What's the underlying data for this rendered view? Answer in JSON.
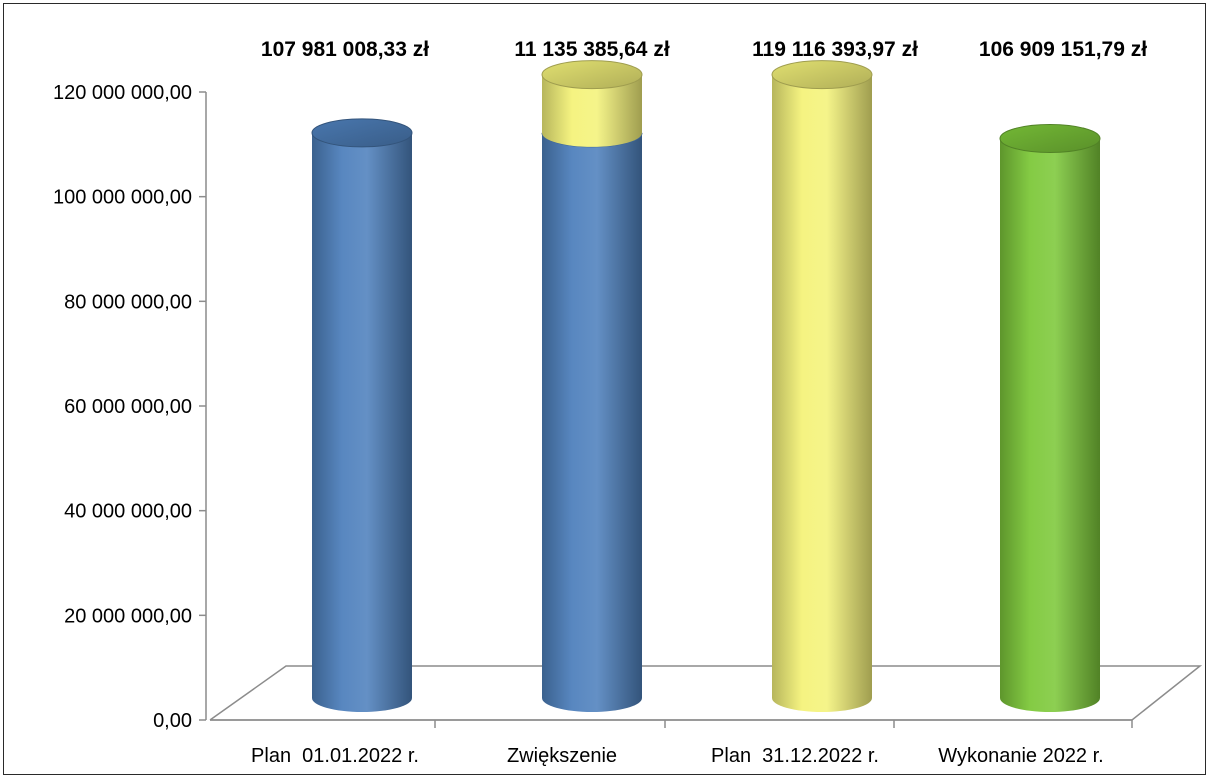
{
  "chart_data": {
    "type": "bar",
    "style": "3d-cylinder",
    "categories": [
      "Plan  01.01.2022 r.",
      "Zwiększenie",
      "Plan  31.12.2022 r.",
      "Wykonanie 2022 r."
    ],
    "series": [
      {
        "color": "#4f81bd",
        "values": [
          107981008.33,
          107981008.33,
          0,
          0
        ]
      },
      {
        "color": "#f4f27a",
        "values": [
          0,
          11135385.64,
          119116393.97,
          0
        ]
      },
      {
        "color": "#7dc83a",
        "values": [
          0,
          0,
          0,
          106909151.79
        ]
      }
    ],
    "data_labels": [
      "107 981 008,33 zł",
      "11 135 385,64 zł",
      "119 116 393,97 zł",
      "106 909 151,79 zł"
    ],
    "y_ticks": [
      {
        "value": 0,
        "label": "0,00"
      },
      {
        "value": 20000000,
        "label": "20 000 000,00"
      },
      {
        "value": 40000000,
        "label": "40 000 000,00"
      },
      {
        "value": 60000000,
        "label": "60 000 000,00"
      },
      {
        "value": 80000000,
        "label": "80 000 000,00"
      },
      {
        "value": 100000000,
        "label": "100 000 000,00"
      },
      {
        "value": 120000000,
        "label": "120 000 000,00"
      }
    ],
    "ylim": [
      0,
      120000000
    ],
    "stacked": true,
    "grid": false,
    "legend": "none",
    "title": "",
    "xlabel": "",
    "ylabel": ""
  }
}
